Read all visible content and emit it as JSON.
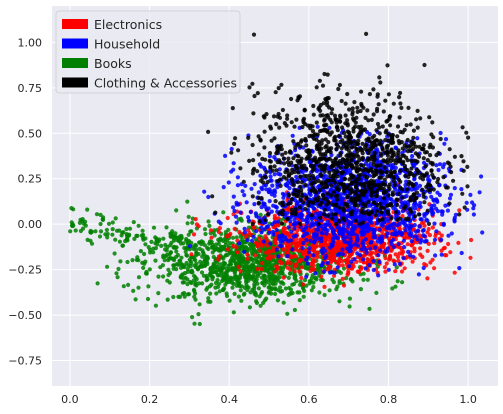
{
  "chart_data": {
    "type": "scatter",
    "title": "",
    "xlabel": "",
    "ylabel": "",
    "xlim": [
      -0.045,
      1.075
    ],
    "ylim": [
      -0.89,
      1.2
    ],
    "xticks": [
      0.0,
      0.2,
      0.4,
      0.6,
      0.8,
      1.0
    ],
    "xtick_labels": [
      "0.0",
      "0.2",
      "0.4",
      "0.6",
      "0.8",
      "1.0"
    ],
    "yticks": [
      -0.75,
      -0.5,
      -0.25,
      0.0,
      0.25,
      0.5,
      0.75,
      1.0
    ],
    "ytick_labels": [
      "−0.75",
      "−0.50",
      "−0.25",
      "0.00",
      "0.25",
      "0.50",
      "0.75",
      "1.00"
    ],
    "grid": true,
    "background": "#eaeaf2",
    "legend_position": "top-left",
    "series": [
      {
        "name": "Electronics",
        "color": "#ff0000",
        "center": [
          0.68,
          -0.08
        ],
        "spread": [
          0.12,
          0.09
        ],
        "x_range": [
          0.15,
          1.02
        ],
        "y_range": [
          -0.35,
          0.25
        ],
        "count": 1100
      },
      {
        "name": "Household",
        "color": "#0000ff",
        "center": [
          0.7,
          0.12
        ],
        "spread": [
          0.12,
          0.16
        ],
        "x_range": [
          0.3,
          1.04
        ],
        "y_range": [
          -0.3,
          0.55
        ],
        "count": 1500
      },
      {
        "name": "Books",
        "color": "#008000",
        "center": [
          0.46,
          -0.21
        ],
        "spread": [
          0.13,
          0.1
        ],
        "x_range": [
          0.0,
          0.98
        ],
        "y_range": [
          -0.78,
          0.3
        ],
        "count": 1300
      },
      {
        "name": "Clothing & Accessories",
        "color": "#000000",
        "center": [
          0.7,
          0.33
        ],
        "spread": [
          0.12,
          0.2
        ],
        "x_range": [
          0.28,
          1.0
        ],
        "y_range": [
          0.0,
          1.12
        ],
        "count": 1100
      }
    ]
  }
}
